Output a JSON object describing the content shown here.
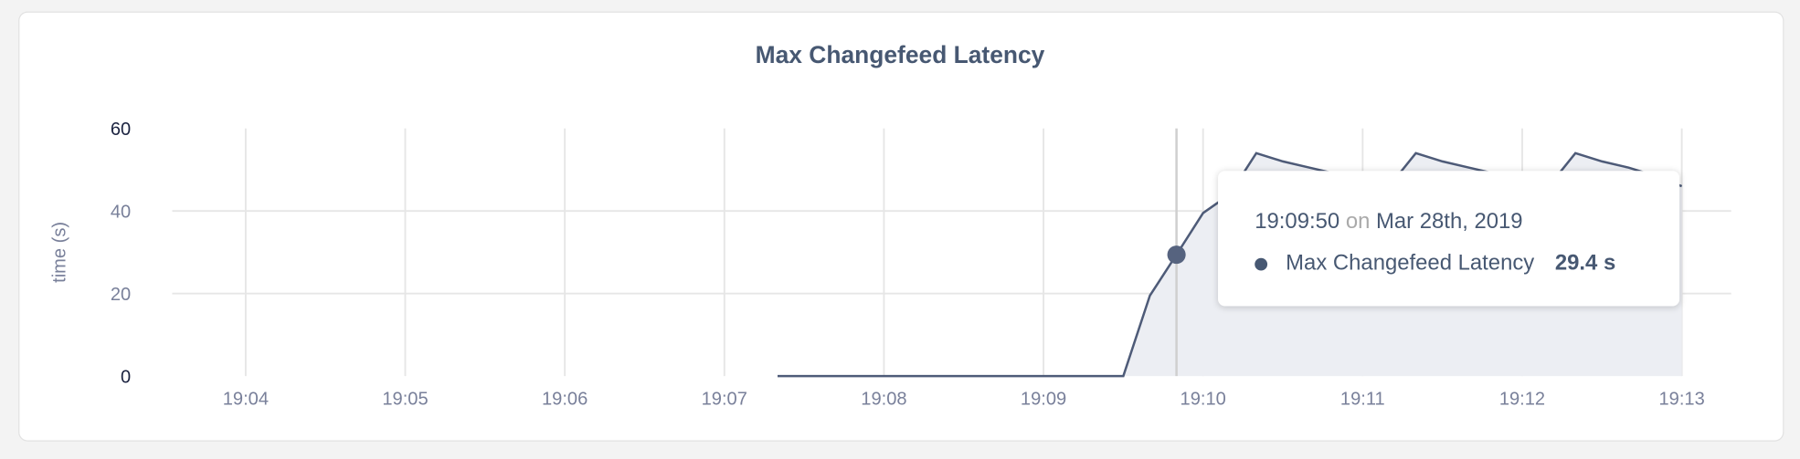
{
  "chart_data": {
    "type": "area",
    "title": "Max Changefeed Latency",
    "ylabel": "time (s)",
    "xlabel": "",
    "ylim": [
      0,
      60
    ],
    "yticks": [
      "0",
      "20",
      "40",
      "60"
    ],
    "xlim": [
      "19:03:30",
      "19:13:20"
    ],
    "xticks": [
      "19:04",
      "19:05",
      "19:06",
      "19:07",
      "19:08",
      "19:09",
      "19:10",
      "19:11",
      "19:12",
      "19:13"
    ],
    "grid": true,
    "colors": {
      "line": "#4e5b78",
      "fill": "#eceef3",
      "text": "#475872"
    },
    "series": [
      {
        "name": "Max Changefeed Latency",
        "x": [
          "19:07:20",
          "19:07:30",
          "19:07:40",
          "19:07:50",
          "19:08:00",
          "19:08:10",
          "19:08:20",
          "19:08:30",
          "19:08:40",
          "19:08:50",
          "19:09:00",
          "19:09:10",
          "19:09:20",
          "19:09:30",
          "19:09:40",
          "19:09:50",
          "19:10:00",
          "19:10:10",
          "19:10:20",
          "19:10:30",
          "19:10:40",
          "19:10:50",
          "19:11:00",
          "19:11:10",
          "19:11:20",
          "19:11:30",
          "19:11:40",
          "19:11:50",
          "19:12:00",
          "19:12:10",
          "19:12:20",
          "19:12:30",
          "19:12:40",
          "19:12:50",
          "19:13:00"
        ],
        "values": [
          0,
          0,
          0,
          0,
          0,
          0,
          0,
          0,
          0,
          0,
          0,
          0,
          0,
          0,
          19.5,
          29.4,
          39.5,
          44,
          54,
          52,
          50.5,
          49,
          47.5,
          46,
          54,
          52,
          50.5,
          49,
          47.5,
          46,
          54,
          52,
          50.5,
          48.5,
          46
        ]
      }
    ]
  },
  "tooltip": {
    "time": "19:09:50",
    "on": "on",
    "date": "Mar 28th, 2019",
    "series_name": "Max Changefeed Latency",
    "value": "29.4 s",
    "hover_x": "19:09:50",
    "hover_y": 29.4
  }
}
